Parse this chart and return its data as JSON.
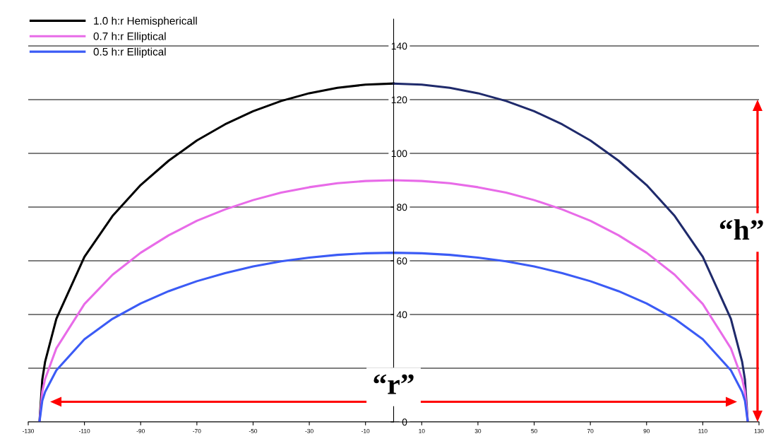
{
  "chart_data": {
    "type": "line",
    "xlim": [
      -130,
      130
    ],
    "ylim": [
      0,
      150
    ],
    "xticks": [
      -130,
      -110,
      -90,
      -70,
      -50,
      -30,
      -10,
      10,
      30,
      50,
      70,
      90,
      110,
      130
    ],
    "yticks": [
      0,
      {
        "value": 20,
        "label": null
      },
      40,
      60,
      80,
      100,
      120,
      140
    ],
    "grid": "y",
    "legend": "top left",
    "marker": "none",
    "line_style": "solid",
    "series": [
      {
        "name": "1.0 h:r Hemisphericall",
        "color": "#000000",
        "x": [
          -126,
          -125,
          -124,
          -120,
          -110,
          -100,
          -90,
          -80,
          -70,
          -60,
          -50,
          -40,
          -30,
          -20,
          -10,
          0
        ],
        "values": [
          0,
          15.8,
          22.4,
          38.4,
          61.5,
          76.7,
          88.2,
          97.3,
          104.8,
          110.8,
          115.7,
          119.5,
          122.4,
          124.4,
          125.6,
          126
        ]
      },
      {
        "color": "#1f2a6b",
        "x": [
          0,
          10,
          20,
          30,
          40,
          50,
          60,
          70,
          80,
          90,
          100,
          110,
          120,
          124,
          125,
          126
        ],
        "values": [
          126,
          125.6,
          124.4,
          122.4,
          119.5,
          115.7,
          110.8,
          104.8,
          97.3,
          88.2,
          76.7,
          61.5,
          38.4,
          22.4,
          15.8,
          0
        ]
      },
      {
        "name": "0.7 h:r Elliptical",
        "color": "#e86be8",
        "x": [
          -126,
          -125,
          -124,
          -120,
          -110,
          -100,
          -90,
          -80,
          -70,
          -60,
          -50,
          -40,
          -30,
          -20,
          -10,
          0,
          10,
          20,
          30,
          40,
          50,
          60,
          70,
          80,
          90,
          100,
          110,
          120,
          124,
          125,
          126
        ],
        "values": [
          0,
          11.3,
          16,
          27.4,
          43.9,
          54.8,
          63,
          69.5,
          74.9,
          79.1,
          82.6,
          85.4,
          87.4,
          88.9,
          89.7,
          90,
          89.7,
          88.9,
          87.4,
          85.4,
          82.6,
          79.1,
          74.9,
          69.5,
          63,
          54.8,
          43.9,
          27.4,
          16,
          11.3,
          0
        ]
      },
      {
        "name": "0.5 h:r Elliptical",
        "color": "#3b5bf5",
        "x": [
          -126,
          -125,
          -124,
          -120,
          -110,
          -100,
          -90,
          -80,
          -70,
          -60,
          -50,
          -40,
          -30,
          -20,
          -10,
          0,
          10,
          20,
          30,
          40,
          50,
          60,
          70,
          80,
          90,
          100,
          110,
          120,
          124,
          125,
          126
        ],
        "values": [
          0,
          7.9,
          11.2,
          19.2,
          30.8,
          38.4,
          44.1,
          48.7,
          52.4,
          55.4,
          57.9,
          59.8,
          61.2,
          62.2,
          62.8,
          63,
          62.8,
          62.2,
          61.2,
          59.8,
          57.9,
          55.4,
          52.4,
          48.7,
          44.1,
          38.4,
          30.8,
          19.2,
          11.2,
          7.9,
          0
        ]
      }
    ],
    "annotations": [
      "“h”",
      "“r”"
    ]
  }
}
